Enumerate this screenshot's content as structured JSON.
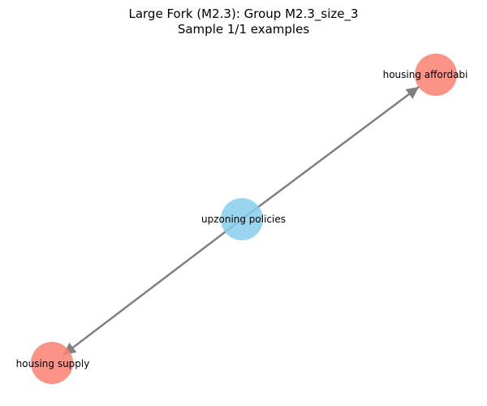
{
  "title": {
    "line1": "Large Fork (M2.3): Group M2.3_size_3",
    "line2": "Sample 1/1 examples"
  },
  "colors": {
    "source_node": "#87CEEB",
    "target_node": "#FA8072",
    "edge": "#808080"
  },
  "graph": {
    "nodes": [
      {
        "id": "upzoning",
        "label": "upzoning policies",
        "role": "source"
      },
      {
        "id": "affordability",
        "label": "housing affordabi",
        "role": "target"
      },
      {
        "id": "supply",
        "label": "housing supply",
        "role": "target"
      }
    ],
    "edges": [
      {
        "from": "upzoning",
        "to": "affordability"
      },
      {
        "from": "upzoning",
        "to": "supply"
      }
    ]
  }
}
